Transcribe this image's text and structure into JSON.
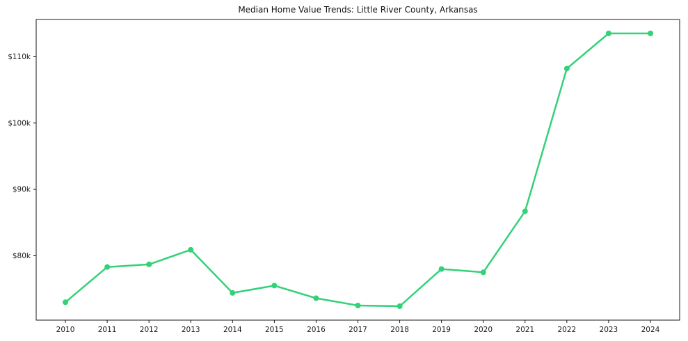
{
  "figure": {
    "background": "#ffffff",
    "spine_color": "#1a1a1a",
    "accent_color": "#34d178"
  },
  "chart_data": {
    "type": "line",
    "title": "Median Home Value Trends: Little River County, Arkansas",
    "xlabel": "",
    "ylabel": "",
    "grid": false,
    "legend": "none",
    "marker": "circle",
    "line_color": "#34d178",
    "line_width": 2.5,
    "marker_radius": 4,
    "x": [
      2010,
      2011,
      2012,
      2013,
      2014,
      2015,
      2016,
      2017,
      2018,
      2019,
      2020,
      2021,
      2022,
      2023,
      2024
    ],
    "x_tick_labels": [
      "2010",
      "2011",
      "2012",
      "2013",
      "2014",
      "2015",
      "2016",
      "2017",
      "2018",
      "2019",
      "2020",
      "2021",
      "2022",
      "2023",
      "2024"
    ],
    "series": [
      {
        "name": "Median Home Value",
        "values": [
          73000,
          78300,
          78700,
          80900,
          74400,
          75500,
          73600,
          72500,
          72400,
          78000,
          77500,
          86700,
          108200,
          113500,
          113500
        ]
      }
    ],
    "xlim": [
      2009.3,
      2024.7
    ],
    "ylim": [
      70300,
      115600
    ],
    "y_ticks": [
      {
        "value": 80000,
        "label": "$80k"
      },
      {
        "value": 90000,
        "label": "$90k"
      },
      {
        "value": 100000,
        "label": "$100k"
      },
      {
        "value": 110000,
        "label": "$110k"
      }
    ]
  }
}
